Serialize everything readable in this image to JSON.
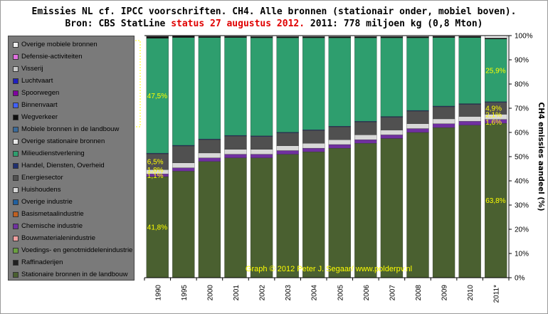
{
  "header": {
    "title_line1": "Emissies NL cf. IPCC voorschriften. CH4. Alle bronnen (stationair onder, mobiel boven).",
    "title_line2_a": "Bron: CBS StatLine ",
    "title_line2_red": "status 27 augustus 2012.",
    "title_line2_b": " 2011: 778 miljoen kg (0,8 Mton)"
  },
  "legend": [
    {
      "label": "Overige mobiele bronnen",
      "color": "#f0f0f0"
    },
    {
      "label": "Defensie-activiteiten",
      "color": "#e070e0"
    },
    {
      "label": "Visserij",
      "color": "#c8c8c8"
    },
    {
      "label": "Luchtvaart",
      "color": "#2020c0"
    },
    {
      "label": "Spoorwegen",
      "color": "#8000a0"
    },
    {
      "label": "Binnenvaart",
      "color": "#4060ff"
    },
    {
      "label": "Wegverkeer",
      "color": "#101010"
    },
    {
      "label": "Mobiele bronnen in de landbouw",
      "color": "#3a6a9a"
    },
    {
      "label": "Overige stationaire bronnen",
      "color": "#e8e8e8"
    },
    {
      "label": "Milieudienstverlening",
      "color": "#2e9e6e"
    },
    {
      "label": "Handel, Diensten, Overheid",
      "color": "#203070"
    },
    {
      "label": "Energiesector",
      "color": "#505050"
    },
    {
      "label": "Huishoudens",
      "color": "#d8d8d8"
    },
    {
      "label": "Overige industrie",
      "color": "#2060a0"
    },
    {
      "label": "Basismetaalindustrie",
      "color": "#c06020"
    },
    {
      "label": "Chemische industrie",
      "color": "#7030a0"
    },
    {
      "label": "Bouwmaterialenindustrie",
      "color": "#f0a0a0"
    },
    {
      "label": "Voedings- en genotmiddelenindustrie",
      "color": "#6aa040"
    },
    {
      "label": "Raffinaderijen",
      "color": "#202020"
    },
    {
      "label": "Stationaire bronnen in de landbouw",
      "color": "#4a6030"
    }
  ],
  "chart_data": {
    "type": "bar",
    "stacked": true,
    "normalized": true,
    "categories": [
      "1990",
      "1995",
      "2000",
      "2001",
      "2002",
      "2003",
      "2004",
      "2005",
      "2006",
      "2007",
      "2008",
      "2009",
      "2010",
      "2011*"
    ],
    "ylabel": "CH4 emissies aandeel (%)",
    "ylim": [
      0,
      100
    ],
    "y_ticks": [
      "0%",
      "10%",
      "20%",
      "30%",
      "40%",
      "50%",
      "60%",
      "70%",
      "80%",
      "90%",
      "100%"
    ],
    "y_axis_position": "right",
    "grid": false,
    "series": [
      {
        "name": "Stationaire bronnen in de landbouw",
        "color": "#4a6030",
        "values": [
          41.8,
          44.0,
          48.0,
          49.5,
          49.5,
          51.0,
          52.0,
          53.5,
          55.5,
          57.5,
          60.0,
          62.0,
          63.0,
          63.8
        ]
      },
      {
        "name": "Chemische industrie",
        "color": "#7030a0",
        "values": [
          1.1,
          1.4,
          1.5,
          1.5,
          1.5,
          1.5,
          1.5,
          1.5,
          1.5,
          1.5,
          1.6,
          1.6,
          1.6,
          1.6
        ]
      },
      {
        "name": "Huishoudens",
        "color": "#d8d8d8",
        "values": [
          1.8,
          2.0,
          2.0,
          2.0,
          2.0,
          2.0,
          2.0,
          2.0,
          2.0,
          2.0,
          2.0,
          2.0,
          2.0,
          2.1
        ]
      },
      {
        "name": "Energiesector",
        "color": "#505050",
        "values": [
          6.5,
          7.0,
          5.5,
          5.5,
          5.3,
          5.3,
          5.3,
          5.3,
          5.3,
          5.3,
          5.2,
          5.0,
          5.0,
          4.9
        ]
      },
      {
        "name": "Handel, Diensten, Overheid",
        "color": "#203070",
        "values": [
          0.3,
          0.3,
          0.3,
          0.3,
          0.3,
          0.3,
          0.3,
          0.3,
          0.3,
          0.3,
          0.3,
          0.3,
          0.3,
          0.3
        ]
      },
      {
        "name": "Milieudienstverlening",
        "color": "#2e9e6e",
        "values": [
          47.5,
          44.5,
          41.9,
          40.4,
          40.5,
          39.0,
          38.0,
          36.5,
          34.5,
          32.5,
          30.0,
          28.3,
          27.3,
          25.9
        ]
      },
      {
        "name": "Wegverkeer",
        "color": "#101010",
        "values": [
          0.8,
          0.6,
          0.5,
          0.5,
          0.5,
          0.5,
          0.5,
          0.5,
          0.5,
          0.5,
          0.5,
          0.5,
          0.5,
          0.4
        ]
      },
      {
        "name": "Overige mobiele bronnen",
        "color": "#f0f0f0",
        "values": [
          0.3,
          0.2,
          0.3,
          0.3,
          0.4,
          0.4,
          0.4,
          0.4,
          0.4,
          0.4,
          0.4,
          0.3,
          0.3,
          1.0
        ]
      }
    ],
    "data_labels": [
      {
        "category": "1990",
        "series": "Stationaire bronnen in de landbouw",
        "text": "41,8%"
      },
      {
        "category": "1990",
        "series": "Chemische industrie",
        "text": "1,1%"
      },
      {
        "category": "1990",
        "series": "Huishoudens",
        "text": "1,8%"
      },
      {
        "category": "1990",
        "series": "Energiesector",
        "text": "6,5%"
      },
      {
        "category": "1990",
        "series": "Milieudienstverlening",
        "text": "47,5%"
      },
      {
        "category": "2011*",
        "series": "Stationaire bronnen in de landbouw",
        "text": "63,8%"
      },
      {
        "category": "2011*",
        "series": "Chemische industrie",
        "text": "1,6%"
      },
      {
        "category": "2011*",
        "series": "Huishoudens",
        "text": "2,1%"
      },
      {
        "category": "2011*",
        "series": "Energiesector",
        "text": "4,9%"
      },
      {
        "category": "2011*",
        "series": "Milieudienstverlening",
        "text": "25,9%"
      }
    ],
    "credit": "Graph © 2012 Peter J. Segaar/ www.polderpv.nl"
  }
}
